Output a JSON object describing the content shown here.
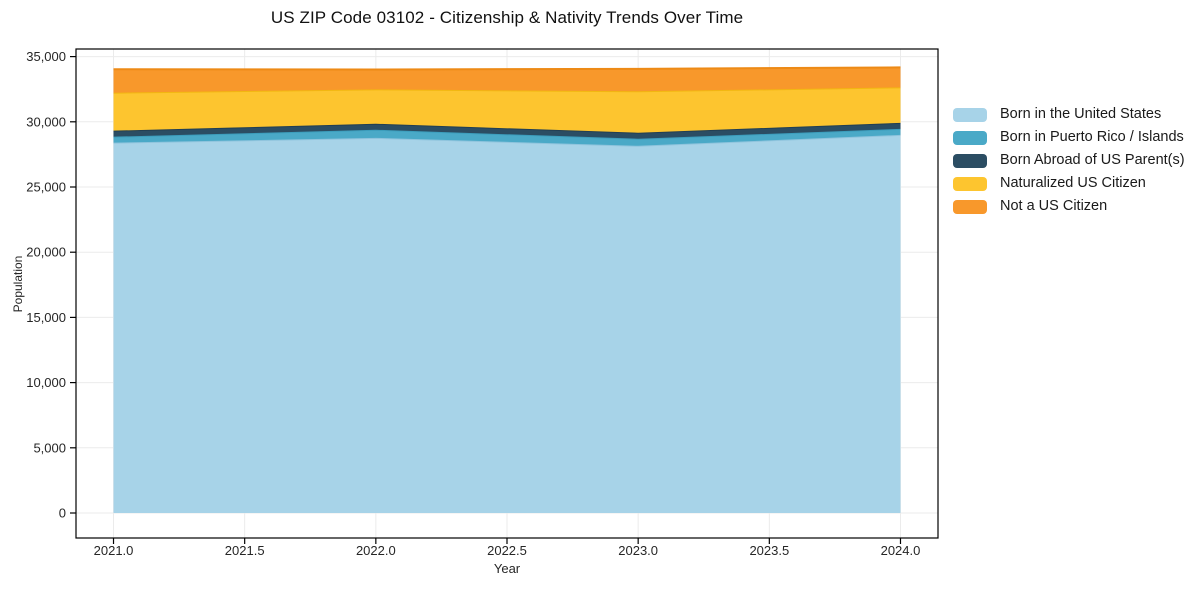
{
  "chart_data": {
    "type": "area",
    "stacked": true,
    "title": "US ZIP Code 03102 - Citizenship & Nativity Trends Over Time",
    "xlabel": "Year",
    "ylabel": "Population",
    "x": [
      2021,
      2022,
      2023,
      2024
    ],
    "series": [
      {
        "name": "Born in the United States",
        "color": "#a7d3e8",
        "edge_color": "#8fc4dd",
        "values": [
          28400,
          28770,
          28160,
          29000
        ]
      },
      {
        "name": "Born in Puerto Rico / Islands",
        "color": "#4aa9c7",
        "edge_color": "#3c9dbc",
        "values": [
          460,
          620,
          540,
          460
        ]
      },
      {
        "name": "Born Abroad of US Parent(s)",
        "color": "#2b4d63",
        "edge_color": "#223f53",
        "values": [
          460,
          460,
          460,
          460
        ]
      },
      {
        "name": "Naturalized US Citizen",
        "color": "#fdc52f",
        "edge_color": "#f2b711",
        "values": [
          2910,
          2640,
          3180,
          2720
        ]
      },
      {
        "name": "Not a US Citizen",
        "color": "#f8982b",
        "edge_color": "#ed8a16",
        "values": [
          1800,
          1520,
          1720,
          1530
        ]
      }
    ],
    "x_tick_labels": [
      "2021.0",
      "2021.5",
      "2022.0",
      "2022.5",
      "2023.0",
      "2023.5",
      "2024.0"
    ],
    "y_tick_labels": [
      "0",
      "5,000",
      "10,000",
      "15,000",
      "20,000",
      "25,000",
      "30,000",
      "35,000"
    ],
    "xlim": [
      2021,
      2024
    ],
    "ylim": [
      0,
      35000
    ],
    "grid": true,
    "grid_color": "#ebebeb",
    "spine_color": "#000000",
    "tick_label_color": "#262626",
    "legend_position": "right-outside"
  }
}
